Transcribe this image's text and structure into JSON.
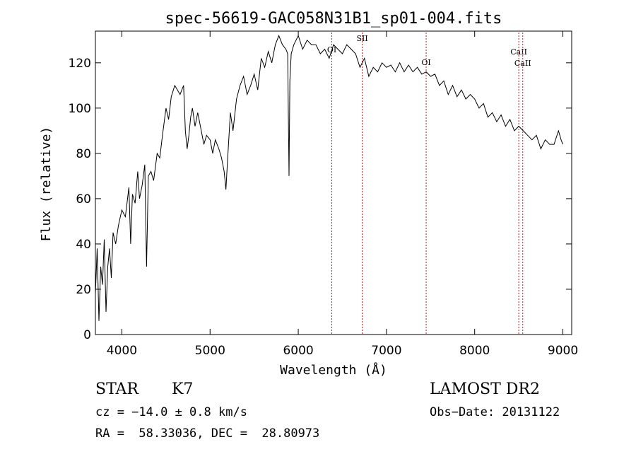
{
  "chart_data": {
    "type": "line",
    "title": "spec-56619-GAC058N31B1_sp01-004.fits",
    "xlabel": "Wavelength (Å)",
    "ylabel": "Flux (relative)",
    "xlim": [
      3700,
      9100
    ],
    "ylim": [
      0,
      134
    ],
    "xticks": [
      4000,
      5000,
      6000,
      7000,
      8000,
      9000
    ],
    "yticks": [
      0,
      20,
      40,
      60,
      80,
      100,
      120
    ],
    "grid": false,
    "line_color": "#000000",
    "marker_color": "#b22222",
    "series": [
      {
        "x": [
          3700,
          3720,
          3740,
          3760,
          3780,
          3800,
          3820,
          3840,
          3860,
          3880,
          3900,
          3930,
          3960,
          4000,
          4040,
          4080,
          4100,
          4120,
          4150,
          4180,
          4200,
          4230,
          4260,
          4280,
          4300,
          4330,
          4360,
          4400,
          4430,
          4460,
          4500,
          4530,
          4560,
          4600,
          4630,
          4660,
          4700,
          4720,
          4740,
          4760,
          4780,
          4800,
          4830,
          4860,
          4900,
          4930,
          4960,
          5000,
          5030,
          5060,
          5100,
          5130,
          5160,
          5180,
          5200,
          5230,
          5260,
          5300,
          5340,
          5380,
          5420,
          5460,
          5500,
          5540,
          5580,
          5620,
          5660,
          5700,
          5740,
          5780,
          5820,
          5860,
          5880,
          5895,
          5905,
          5920,
          5950,
          6000,
          6050,
          6100,
          6150,
          6200,
          6250,
          6300,
          6350,
          6400,
          6450,
          6500,
          6550,
          6600,
          6650,
          6700,
          6750,
          6800,
          6850,
          6900,
          6950,
          7000,
          7050,
          7100,
          7150,
          7200,
          7250,
          7300,
          7350,
          7400,
          7450,
          7500,
          7550,
          7600,
          7650,
          7700,
          7750,
          7800,
          7850,
          7900,
          7950,
          8000,
          8050,
          8100,
          8150,
          8200,
          8250,
          8300,
          8350,
          8400,
          8450,
          8500,
          8550,
          8600,
          8650,
          8700,
          8750,
          8800,
          8850,
          8900,
          8950,
          8980,
          9000
        ],
        "y": [
          18,
          38,
          6,
          30,
          22,
          42,
          10,
          30,
          38,
          25,
          45,
          40,
          48,
          55,
          52,
          65,
          40,
          62,
          58,
          72,
          60,
          66,
          75,
          30,
          70,
          72,
          68,
          80,
          78,
          88,
          100,
          95,
          105,
          110,
          108,
          106,
          110,
          90,
          82,
          88,
          96,
          100,
          92,
          98,
          90,
          84,
          88,
          86,
          80,
          86,
          82,
          78,
          72,
          64,
          78,
          98,
          90,
          104,
          110,
          114,
          106,
          110,
          115,
          108,
          122,
          118,
          125,
          120,
          128,
          132,
          128,
          126,
          124,
          70,
          112,
          124,
          128,
          132,
          126,
          130,
          128,
          128,
          124,
          126,
          122,
          128,
          126,
          124,
          128,
          126,
          124,
          118,
          122,
          114,
          118,
          116,
          120,
          118,
          119,
          116,
          120,
          116,
          119,
          116,
          118,
          115,
          116,
          114,
          115,
          110,
          112,
          106,
          110,
          105,
          108,
          104,
          106,
          104,
          100,
          102,
          96,
          98,
          94,
          97,
          92,
          95,
          90,
          92,
          90,
          88,
          86,
          88,
          82,
          86,
          84,
          84,
          90,
          86,
          84
        ]
      }
    ],
    "line_markers": [
      {
        "x": 6380,
        "label": "OI"
      },
      {
        "x": 6725,
        "label": "SII"
      },
      {
        "x": 7450,
        "label": "OI"
      },
      {
        "x": 8500,
        "label": "CaII"
      },
      {
        "x": 8545,
        "label": "CaII"
      }
    ]
  },
  "info": {
    "object_type": "STAR",
    "subclass": "K7",
    "survey": "LAMOST DR2",
    "cz": "cz = −14.0 ± 0.8 km/s",
    "obs_date": "Obs−Date: 20131122",
    "coords": "RA =  58.33036, DEC =  28.80973"
  }
}
